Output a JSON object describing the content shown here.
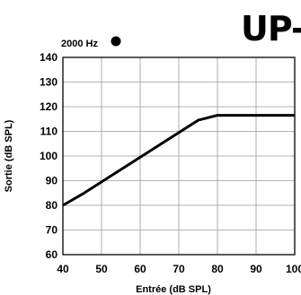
{
  "header": {
    "banner_text": "UP-"
  },
  "chart_data": {
    "type": "line",
    "legend": {
      "label": "2000 Hz",
      "marker": "filled-circle",
      "placement": "top-left"
    },
    "xlabel": "Entrée (dB SPL)",
    "ylabel": "Sortie (dB SPL)",
    "xlim": [
      40,
      100
    ],
    "ylim": [
      60,
      140
    ],
    "xticks": [
      40,
      50,
      60,
      70,
      80,
      90,
      100
    ],
    "yticks": [
      60,
      70,
      80,
      90,
      100,
      110,
      120,
      130,
      140
    ],
    "x_tick_labels": [
      "40",
      "50",
      "60",
      "70",
      "80",
      "90",
      "100"
    ],
    "y_tick_labels": [
      "60",
      "70",
      "80",
      "90",
      "100",
      "110",
      "120",
      "130",
      "140"
    ],
    "grid": true,
    "series": [
      {
        "name": "2000 Hz",
        "color": "#000000",
        "x": [
          40,
          45,
          50,
          55,
          60,
          65,
          70,
          75,
          80,
          85,
          90,
          95,
          100
        ],
        "y": [
          80,
          84.5,
          89.5,
          94.5,
          99.5,
          104.5,
          109.5,
          114.5,
          116.5,
          116.5,
          116.5,
          116.5,
          116.5
        ]
      }
    ]
  }
}
